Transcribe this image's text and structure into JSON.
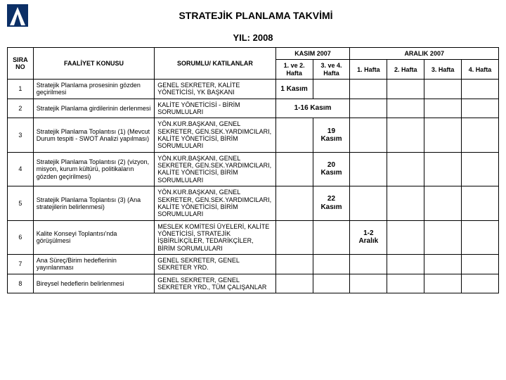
{
  "title": "STRATEJİK PLANLAMA TAKVİMİ",
  "subtitle": "YIL: 2008",
  "logo": {
    "bg": "#0b2f66",
    "fg": "#ffffff"
  },
  "header": {
    "sira": "SIRA NO",
    "faaliyet": "FAALİYET KONUSU",
    "sorum": "SORUMLU/ KATILANLAR",
    "kasim": "KASIM 2007",
    "aralik": "ARALIK 2007",
    "kasim_sub": [
      "1. ve 2. Hafta",
      "3. ve 4. Hafta"
    ],
    "aralik_sub": [
      "1. Hafta",
      "2. Hafta",
      "3. Hafta",
      "4. Hafta"
    ]
  },
  "rows": [
    {
      "no": "1",
      "konu": "Stratejik Planlama prosesinin gözden geçirilmesi",
      "sorum": "GENEL SEKRETER, KALİTE YÖNETİCİSİ, YK BAŞKANI",
      "cells": [
        "1 Kasım",
        "",
        "",
        "",
        "",
        ""
      ]
    },
    {
      "no": "2",
      "konu": "Stratejik Planlama girdilerinin derlenmesi",
      "sorum": "KALİTE YÖNETİCİSİ - BİRİM SORUMLULARI",
      "span": {
        "col": 0,
        "width": 2,
        "text": "1-16 Kasım"
      },
      "cells": [
        "",
        "",
        "",
        "",
        "",
        ""
      ]
    },
    {
      "no": "3",
      "konu": "Stratejik Planlama Toplantısı (1) (Mevcut Durum tespiti - SWOT Analizi yapılması)",
      "sorum": "YÖN.KUR.BAŞKANI, GENEL SEKRETER, GEN.SEK.YARDIMCILARI, KALİTE YÖNETİCİSİ, BİRİM SORUMLULARI",
      "cells": [
        "",
        "19 Kasım",
        "",
        "",
        "",
        ""
      ]
    },
    {
      "no": "4",
      "konu": "Stratejik Planlama Toplantısı (2) (vizyon, misyon, kurum kültürü, politikaların gözden geçirilmesi)",
      "sorum": "YÖN.KUR.BAŞKANI, GENEL SEKRETER, GEN.SEK.YARDIMCILARI, KALİTE YÖNETİCİSİ, BİRİM SORUMLULARI",
      "cells": [
        "",
        "20 Kasım",
        "",
        "",
        "",
        ""
      ]
    },
    {
      "no": "5",
      "konu": "Stratejik Planlama Toplantısı (3) (Ana stratejilerin belirlenmesi)",
      "sorum": "YÖN.KUR.BAŞKANI, GENEL SEKRETER, GEN.SEK.YARDIMCILARI, KALİTE YÖNETİCİSİ, BİRİM SORUMLULARI",
      "cells": [
        "",
        "22 Kasım",
        "",
        "",
        "",
        ""
      ]
    },
    {
      "no": "6",
      "konu": "Kalite Konseyi Toplantısı'nda görüşülmesi",
      "sorum": "MESLEK KOMİTESİ ÜYELERİ, KALİTE YÖNETİCİSİ, STRATEJİK İŞBİRLİKÇİLER, TEDARİKÇİLER, BİRİM SORUMLULARI",
      "cells": [
        "",
        "",
        "1-2 Aralık",
        "",
        "",
        ""
      ]
    },
    {
      "no": "7",
      "konu": "Ana Süreç/Birim hedeflerinin yayınlanması",
      "sorum": "GENEL SEKRETER, GENEL SEKRETER YRD.",
      "cells": [
        "",
        "",
        "",
        "",
        "",
        ""
      ]
    },
    {
      "no": "8",
      "konu": "Bireysel hedeflerin belirlenmesi",
      "sorum": "GENEL SEKRETER, GENEL SEKRETER YRD., TÜM ÇALIŞANLAR",
      "cells": [
        "",
        "",
        "",
        "",
        "",
        ""
      ]
    }
  ],
  "colors": {
    "border": "#000000",
    "bg": "#ffffff",
    "text": "#000000"
  },
  "fontsizes": {
    "title": 14,
    "subtitle": 13,
    "cell": 9,
    "data": 10
  }
}
